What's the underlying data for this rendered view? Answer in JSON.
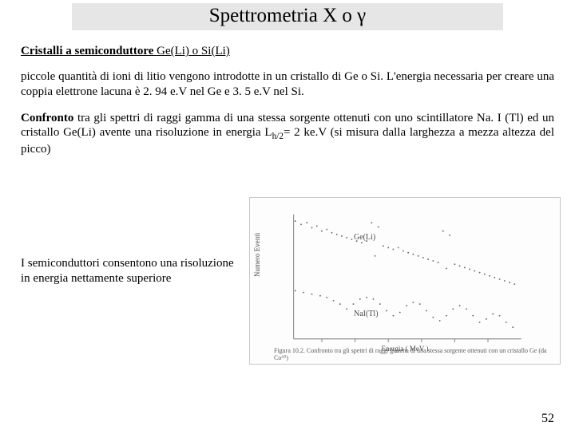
{
  "title": "Spettrometria X o γ",
  "line1_u_b": "Cristalli a semiconduttore ",
  "line1_u": "Ge(Li) o Si(Li)",
  "para1": "piccole quantità di ioni di litio vengono introdotte in un cristallo di Ge o Si. L'energia necessaria per creare una coppia elettrone lacuna è 2. 94 e.V nel Ge e 3. 5 e.V nel Si.",
  "para2_lead_b": "Confronto",
  "para2_mid": " tra gli spettri di raggi gamma di una stessa sorgente ottenuti con uno scintillatore Na. I (Tl) ed un cristallo Ge(Li) avente una risoluzione in energia L",
  "para2_sub": "h/2",
  "para2_tail": "= 2 ke.V (si misura dalla larghezza a mezza altezza del picco)",
  "left_note": "I semiconduttori consentono una risoluzione in energia nettamente superiore",
  "chart": {
    "ylabel": "Numero Eventi",
    "xlabel": "Energia ( MeV )",
    "series1_label": "Ge(Li)",
    "series2_label": "NaI(Tl)",
    "caption": "Figura 10.2. Confronto tra gli spettri di raggi gamma di una stessa sorgente ottenuti con un cristallo Ge (da Co⁶⁰)",
    "axis_color": "#888888",
    "trace_color": "#6a6a6a",
    "ge_points": [
      [
        28,
        28
      ],
      [
        35,
        32
      ],
      [
        42,
        30
      ],
      [
        48,
        36
      ],
      [
        54,
        34
      ],
      [
        60,
        40
      ],
      [
        66,
        38
      ],
      [
        72,
        42
      ],
      [
        78,
        44
      ],
      [
        84,
        46
      ],
      [
        90,
        48
      ],
      [
        96,
        50
      ],
      [
        102,
        52
      ],
      [
        108,
        54
      ],
      [
        114,
        52
      ],
      [
        120,
        30
      ],
      [
        124,
        70
      ],
      [
        128,
        35
      ],
      [
        134,
        58
      ],
      [
        140,
        60
      ],
      [
        146,
        62
      ],
      [
        152,
        60
      ],
      [
        158,
        64
      ],
      [
        164,
        66
      ],
      [
        170,
        68
      ],
      [
        176,
        70
      ],
      [
        182,
        72
      ],
      [
        188,
        74
      ],
      [
        194,
        76
      ],
      [
        200,
        78
      ],
      [
        206,
        40
      ],
      [
        210,
        85
      ],
      [
        214,
        45
      ],
      [
        220,
        80
      ],
      [
        226,
        82
      ],
      [
        232,
        84
      ],
      [
        238,
        86
      ],
      [
        244,
        88
      ],
      [
        250,
        90
      ],
      [
        256,
        92
      ],
      [
        262,
        94
      ],
      [
        268,
        96
      ],
      [
        274,
        98
      ],
      [
        280,
        100
      ],
      [
        286,
        102
      ],
      [
        292,
        104
      ]
    ],
    "nai_points": [
      [
        28,
        112
      ],
      [
        38,
        114
      ],
      [
        48,
        116
      ],
      [
        58,
        118
      ],
      [
        66,
        120
      ],
      [
        74,
        124
      ],
      [
        82,
        128
      ],
      [
        90,
        134
      ],
      [
        98,
        128
      ],
      [
        106,
        122
      ],
      [
        114,
        120
      ],
      [
        122,
        122
      ],
      [
        130,
        128
      ],
      [
        138,
        136
      ],
      [
        146,
        142
      ],
      [
        154,
        138
      ],
      [
        162,
        130
      ],
      [
        170,
        126
      ],
      [
        178,
        128
      ],
      [
        186,
        136
      ],
      [
        194,
        144
      ],
      [
        202,
        148
      ],
      [
        210,
        142
      ],
      [
        218,
        134
      ],
      [
        226,
        130
      ],
      [
        234,
        134
      ],
      [
        242,
        142
      ],
      [
        250,
        150
      ],
      [
        258,
        146
      ],
      [
        266,
        140
      ],
      [
        274,
        142
      ],
      [
        282,
        150
      ],
      [
        290,
        156
      ]
    ]
  },
  "page_number": "52"
}
